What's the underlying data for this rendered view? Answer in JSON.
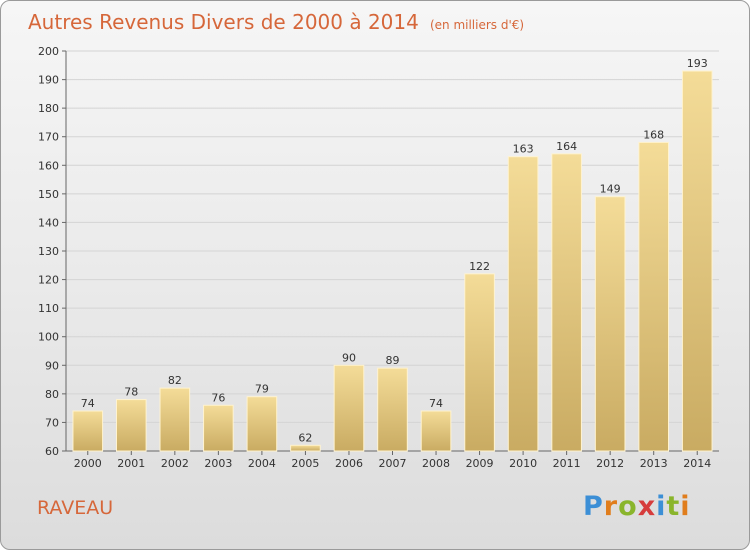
{
  "title": "Autres Revenus Divers de 2000 à 2014",
  "subtitle": "(en milliers d'€)",
  "commune": "RAVEAU",
  "logo": {
    "text": "Proxiti",
    "letter_colors": [
      "#3c8fd6",
      "#e07d1c",
      "#8ab52c",
      "#d63c3c",
      "#3c8fd6",
      "#8ab52c",
      "#e07d1c"
    ]
  },
  "colors": {
    "title": "#d6673a",
    "bar_top": "#f4dc98",
    "bar_bottom": "#c9ab62",
    "grid": "#d4d4d4"
  },
  "chart_data": {
    "type": "bar",
    "title": "Autres Revenus Divers de 2000 à 2014",
    "xlabel": "",
    "ylabel": "",
    "categories": [
      "2000",
      "2001",
      "2002",
      "2003",
      "2004",
      "2005",
      "2006",
      "2007",
      "2008",
      "2009",
      "2010",
      "2011",
      "2012",
      "2013",
      "2014"
    ],
    "values": [
      74,
      78,
      82,
      76,
      79,
      62,
      90,
      89,
      74,
      122,
      163,
      164,
      149,
      168,
      193
    ],
    "ylim": [
      60,
      200
    ],
    "yticks": [
      60,
      70,
      80,
      90,
      100,
      110,
      120,
      130,
      140,
      150,
      160,
      170,
      180,
      190,
      200
    ],
    "grid": true,
    "data_labels": true
  }
}
